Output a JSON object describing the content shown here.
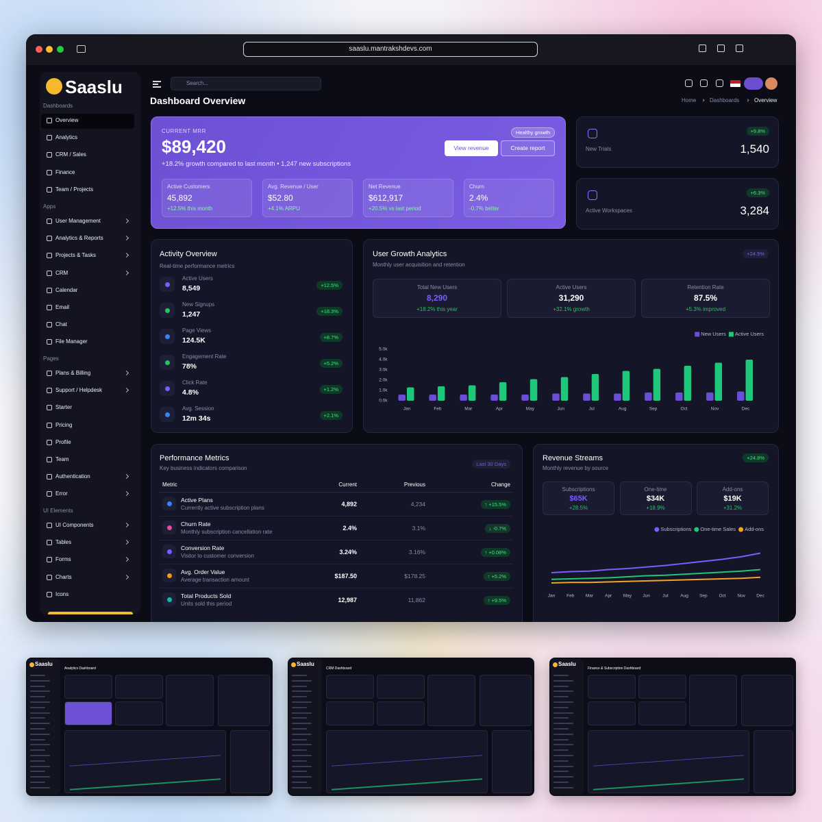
{
  "browser": {
    "url": "saaslu.mantrakshdevs.com"
  },
  "sidebar": {
    "brand": "Saaslu",
    "sections": [
      {
        "title": "Dashboards",
        "items": [
          {
            "label": "Overview",
            "active": true
          },
          {
            "label": "Analytics"
          },
          {
            "label": "CRM / Sales"
          },
          {
            "label": "Finance"
          },
          {
            "label": "Team / Projects"
          }
        ]
      },
      {
        "title": "Apps",
        "items": [
          {
            "label": "User Management",
            "chevron": true
          },
          {
            "label": "Analytics & Reports",
            "chevron": true
          },
          {
            "label": "Projects & Tasks",
            "chevron": true
          },
          {
            "label": "CRM",
            "chevron": true
          },
          {
            "label": "Calendar"
          },
          {
            "label": "Email"
          },
          {
            "label": "Chat"
          },
          {
            "label": "File Manager"
          }
        ]
      },
      {
        "title": "Pages",
        "items": [
          {
            "label": "Plans & Billing",
            "chevron": true
          },
          {
            "label": "Support / Helpdesk",
            "chevron": true
          },
          {
            "label": "Starter"
          },
          {
            "label": "Pricing"
          },
          {
            "label": "Profile"
          },
          {
            "label": "Team"
          },
          {
            "label": "Authentication",
            "chevron": true
          },
          {
            "label": "Error",
            "chevron": true
          }
        ]
      },
      {
        "title": "UI Elements",
        "items": [
          {
            "label": "UI Components",
            "chevron": true
          },
          {
            "label": "Tables",
            "chevron": true
          },
          {
            "label": "Forms",
            "chevron": true
          },
          {
            "label": "Charts",
            "chevron": true
          },
          {
            "label": "Icons"
          }
        ]
      }
    ]
  },
  "header": {
    "search": "Search...",
    "title": "Dashboard Overview",
    "breadcrumb": [
      "Home",
      "Dashboards",
      "Overview"
    ]
  },
  "hero": {
    "label": "CURRENT MRR",
    "value": "$89,420",
    "subtitle": "+18.2% growth compared to last month • 1,247 new subscriptions",
    "badge": "Healthy growth",
    "buttons": [
      "View revenue",
      "Create report"
    ],
    "stats": [
      {
        "label": "Active Customers",
        "value": "45,892",
        "delta": "+12.5% this month"
      },
      {
        "label": "Avg. Revenue / User",
        "value": "$52.80",
        "delta": "+4.1% ARPU"
      },
      {
        "label": "Net Revenue",
        "value": "$612,917",
        "delta": "+20.5% vs last period"
      },
      {
        "label": "Churn",
        "value": "2.4%",
        "delta": "-0.7% better"
      }
    ]
  },
  "side_cards": [
    {
      "label": "New Trials",
      "value": "1,540",
      "badge": "+9.8%"
    },
    {
      "label": "Active Workspaces",
      "value": "3,284",
      "badge": "+6.3%"
    }
  ],
  "activity": {
    "title": "Activity Overview",
    "subtitle": "Real-time performance metrics",
    "items": [
      {
        "label": "Active Users",
        "value": "8,549",
        "badge": "+12.5%"
      },
      {
        "label": "New Signups",
        "value": "1,247",
        "badge": "+18.3%"
      },
      {
        "label": "Page Views",
        "value": "124.5K",
        "badge": "+8.7%"
      },
      {
        "label": "Engagement Rate",
        "value": "78%",
        "badge": "+5.2%"
      },
      {
        "label": "Click Rate",
        "value": "4.8%",
        "badge": "+1.2%"
      },
      {
        "label": "Avg. Session",
        "value": "12m 34s",
        "badge": "+2.1%"
      }
    ]
  },
  "user_growth": {
    "title": "User Growth Analytics",
    "subtitle": "Monthly user acquisition and retention",
    "badge": "+24.5%",
    "stats": [
      {
        "label": "Total New Users",
        "value": "8,290",
        "delta": "+18.2% this year"
      },
      {
        "label": "Active Users",
        "value": "31,290",
        "delta": "+32.1% growth"
      },
      {
        "label": "Retention Rate",
        "value": "87.5%",
        "delta": "+5.3% improved"
      }
    ],
    "chart_data": {
      "type": "bar",
      "categories": [
        "Jan",
        "Feb",
        "Mar",
        "Apr",
        "May",
        "Jun",
        "Jul",
        "Aug",
        "Sep",
        "Oct",
        "Nov",
        "Dec"
      ],
      "series": [
        {
          "name": "New Users",
          "color": "#6a4fd6",
          "values": [
            600,
            600,
            600,
            600,
            600,
            700,
            700,
            700,
            800,
            800,
            800,
            900
          ]
        },
        {
          "name": "Active Users",
          "color": "#1fc77a",
          "values": [
            1300,
            1400,
            1500,
            1800,
            2100,
            2300,
            2600,
            2900,
            3100,
            3400,
            3700,
            4000
          ]
        }
      ],
      "ylim": [
        0,
        5000
      ],
      "yticks": [
        {
          "value": 0,
          "label": "0.0k"
        },
        {
          "value": 1000,
          "label": "1.0k"
        },
        {
          "value": 2000,
          "label": "2.0k"
        },
        {
          "value": 3000,
          "label": "3.0k"
        },
        {
          "value": 4000,
          "label": "4.0k"
        },
        {
          "value": 5000,
          "label": "5.0k"
        }
      ],
      "legend": "top-right"
    }
  },
  "performance": {
    "title": "Performance Metrics",
    "subtitle": "Key business indicators comparison",
    "badge": "Last 30 Days",
    "columns": [
      "Metric",
      "Current",
      "Previous",
      "Change"
    ],
    "rows": [
      {
        "name": "Active Plans",
        "desc": "Currently active subscription plans",
        "current": "4,892",
        "previous": "4,234",
        "change": "↑ +15.5%"
      },
      {
        "name": "Churn Rate",
        "desc": "Monthly subscription cancellation rate",
        "current": "2.4%",
        "previous": "3.1%",
        "change": "↓ -0.7%"
      },
      {
        "name": "Conversion Rate",
        "desc": "Visitor to customer conversion",
        "current": "3.24%",
        "previous": "3.16%",
        "change": "↑ +0.08%"
      },
      {
        "name": "Avg. Order Value",
        "desc": "Average transaction amount",
        "current": "$187.50",
        "previous": "$178.25",
        "change": "↑ +5.2%"
      },
      {
        "name": "Total Products Sold",
        "desc": "Units sold this period",
        "current": "12,987",
        "previous": "11,862",
        "change": "↑ +9.5%"
      }
    ]
  },
  "revenue": {
    "title": "Revenue Streams",
    "subtitle": "Monthly revenue by source",
    "badge": "+24.8%",
    "stats": [
      {
        "label": "Subscriptions",
        "value": "$65K",
        "delta": "+28.5%"
      },
      {
        "label": "One-time",
        "value": "$34K",
        "delta": "+18.9%"
      },
      {
        "label": "Add-ons",
        "value": "$19K",
        "delta": "+31.2%"
      }
    ],
    "chart_data": {
      "type": "line",
      "categories": [
        "Jan",
        "Feb",
        "Mar",
        "Apr",
        "May",
        "Jun",
        "Jul",
        "Aug",
        "Sep",
        "Oct",
        "Nov",
        "Dec"
      ],
      "series": [
        {
          "name": "Subscriptions",
          "color": "#7c5cff",
          "values": [
            32,
            34,
            35,
            38,
            40,
            43,
            46,
            50,
            54,
            58,
            63,
            70
          ]
        },
        {
          "name": "One-time Sales",
          "color": "#1fc77a",
          "values": [
            19,
            20,
            21,
            22,
            24,
            26,
            27,
            29,
            31,
            33,
            35,
            38
          ]
        },
        {
          "name": "Add-ons",
          "color": "#f5a524",
          "values": [
            12,
            13,
            13,
            14,
            15,
            16,
            17,
            18,
            19,
            20,
            21,
            23
          ]
        }
      ],
      "ylim": [
        0,
        80
      ],
      "legend": "top-right"
    }
  },
  "thumbnails": [
    {
      "brand": "Saaslu",
      "title": "Analytics Dashboard"
    },
    {
      "brand": "Saaslu",
      "title": "CRM Dashboard"
    },
    {
      "brand": "Saaslu",
      "title": "Finance & Subscription Dashboard"
    }
  ]
}
